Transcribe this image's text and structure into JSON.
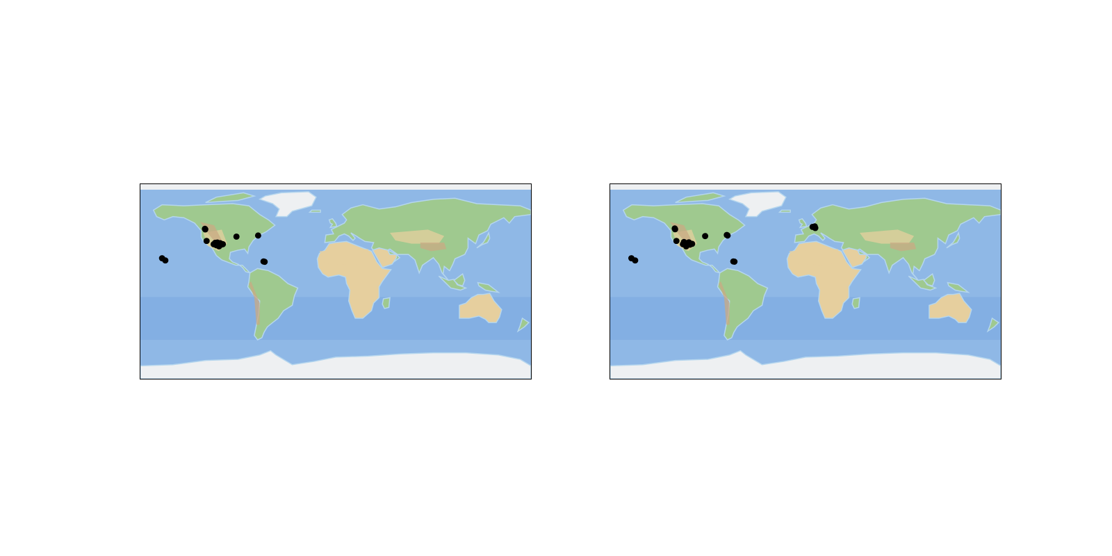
{
  "colors": {
    "ocean": "#8fb8e6",
    "deep_ocean": "#6e9fdc",
    "shelf": "#b5d6ee",
    "ice": "#eef0f2",
    "land_low": "#9fc98f",
    "land_dry": "#e6cf9e",
    "land_high": "#c9a983",
    "marker": "#000000",
    "frame": "#000000"
  },
  "maps": [
    {
      "id": "left",
      "projection": "equirectangular",
      "extent": {
        "lon": [
          -180,
          180
        ],
        "lat": [
          -90,
          90
        ]
      },
      "points": [
        {
          "lon": -120.5,
          "lat": 48.7
        },
        {
          "lon": -120.2,
          "lat": 48.2
        },
        {
          "lon": -119.0,
          "lat": 37.5
        },
        {
          "lon": -112.5,
          "lat": 34.5
        },
        {
          "lon": -111.0,
          "lat": 35.8
        },
        {
          "lon": -110.0,
          "lat": 33.5
        },
        {
          "lon": -109.0,
          "lat": 36.0
        },
        {
          "lon": -108.5,
          "lat": 34.8
        },
        {
          "lon": -107.5,
          "lat": 32.5
        },
        {
          "lon": -106.5,
          "lat": 35.5
        },
        {
          "lon": -105.5,
          "lat": 34.0
        },
        {
          "lon": -104.0,
          "lat": 34.5
        },
        {
          "lon": -91.5,
          "lat": 41.5
        },
        {
          "lon": -71.5,
          "lat": 42.5
        },
        {
          "lon": -66.5,
          "lat": 18.5
        },
        {
          "lon": -65.5,
          "lat": 18.2
        },
        {
          "lon": -160.0,
          "lat": 21.5
        },
        {
          "lon": -157.0,
          "lat": 19.5
        }
      ]
    },
    {
      "id": "right",
      "projection": "equirectangular",
      "extent": {
        "lon": [
          -180,
          180
        ],
        "lat": [
          -90,
          90
        ]
      },
      "points": [
        {
          "lon": -120.5,
          "lat": 49.0
        },
        {
          "lon": -120.2,
          "lat": 48.3
        },
        {
          "lon": -119.0,
          "lat": 37.5
        },
        {
          "lon": -113.0,
          "lat": 34.5
        },
        {
          "lon": -112.0,
          "lat": 36.5
        },
        {
          "lon": -110.5,
          "lat": 35.5
        },
        {
          "lon": -110.0,
          "lat": 32.5
        },
        {
          "lon": -108.5,
          "lat": 35.0
        },
        {
          "lon": -107.5,
          "lat": 36.2
        },
        {
          "lon": -106.5,
          "lat": 34.0
        },
        {
          "lon": -104.5,
          "lat": 34.8
        },
        {
          "lon": -92.5,
          "lat": 42.0
        },
        {
          "lon": -72.5,
          "lat": 43.0
        },
        {
          "lon": -71.8,
          "lat": 42.5
        },
        {
          "lon": -66.5,
          "lat": 18.5
        },
        {
          "lon": -65.5,
          "lat": 18.3
        },
        {
          "lon": -160.5,
          "lat": 21.5
        },
        {
          "lon": -157.0,
          "lat": 19.5
        },
        {
          "lon": 6.5,
          "lat": 50.5
        },
        {
          "lon": 8.5,
          "lat": 51.0
        },
        {
          "lon": 9.0,
          "lat": 49.5
        }
      ]
    }
  ]
}
